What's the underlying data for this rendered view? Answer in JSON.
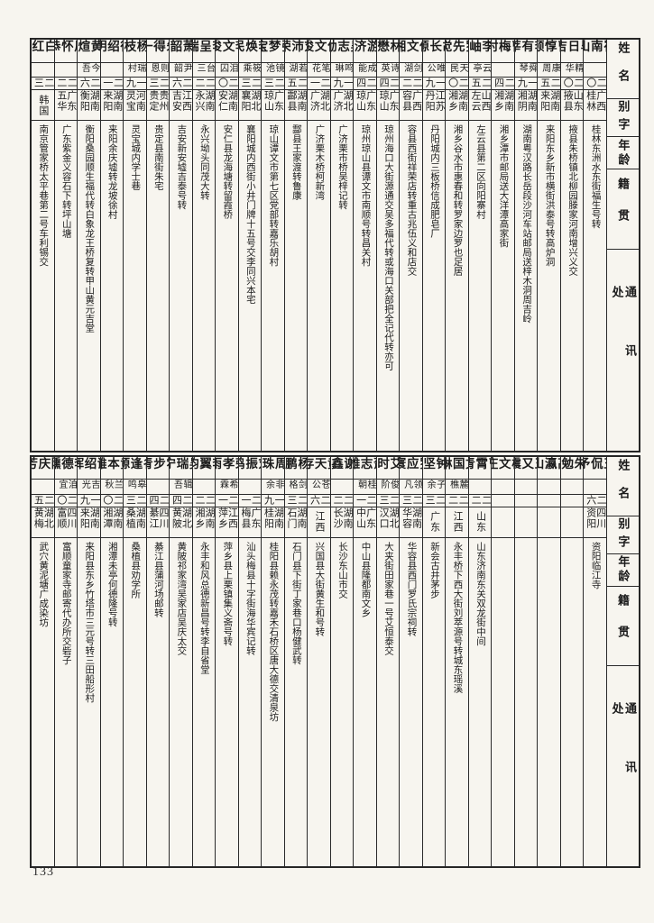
{
  "page_number": "133",
  "headers": {
    "name": "姓名",
    "courtesy_name": "别字",
    "age": "年龄",
    "native_place": "籍贯",
    "address": "通讯处"
  },
  "tables": {
    "top": {
      "entries": [
        {
          "name": "崔南山",
          "courtesy_name": "",
          "age": "二〇",
          "native_place": "广西桂林",
          "address": "桂林东洲水东街福生号转"
        },
        {
          "name": "毕日吉",
          "courtesy_name": "精华",
          "age": "二〇",
          "native_place": "山东掖县",
          "address": "掖县朱桥镇北柳园滕家河南增兴义交"
        },
        {
          "name": "曹惇颐",
          "courtesy_name": "康周",
          "age": "二五",
          "native_place": "湖南来阳",
          "address": "来阳东乡新市横街洪泰号转高炉洞"
        },
        {
          "name": "李有莘",
          "courtesy_name": "舜琴",
          "age": "一九",
          "native_place": "湖南湘阴",
          "address": "湖南粤汉路长岳段沙河车站邮局送梓木洞周吉岭"
        },
        {
          "name": "曹梅村",
          "courtesy_name": "",
          "age": "二四",
          "native_place": "湖南湘乡",
          "address": "湘乡潭市邮局送大洋潭高家街"
        },
        {
          "name": "李岫",
          "courtesy_name": "云亭",
          "age": "二五",
          "native_place": "山西左云",
          "address": "左云县第二区向阳寨村"
        },
        {
          "name": "罗先觉",
          "courtesy_name": "天民",
          "age": "二〇",
          "native_place": "湖南湘乡",
          "address": "湘乡谷水市惠春和转罗家边罗也足居"
        },
        {
          "name": "胡长源",
          "courtesy_name": "唯公",
          "age": "一九",
          "native_place": "江苏丹阳",
          "address": "丹阳城内三板桥信成肥皂厂"
        },
        {
          "name": "伍文湘",
          "courtesy_name": "剑湖",
          "age": "二二",
          "native_place": "广西容县",
          "address": "容县西街祥荣店转重古兆伍义和店交"
        },
        {
          "name": "林懋",
          "courtesy_name": "诗英",
          "age": "二四",
          "native_place": "广东琼山",
          "address": "琼州海口大街源通交吴多福代转或海口关部把全记代转亦可"
        },
        {
          "name": "游济",
          "courtesy_name": "成能",
          "age": "二四",
          "native_place": "广东琼山",
          "address": "琼州琼山县谭文市南顺号转昌关村"
        },
        {
          "name": "吴志勋",
          "courtesy_name": "鸣琳",
          "age": "一九",
          "native_place": "湖北广济",
          "address": "广济栗市桥吴梓记转"
        },
        {
          "name": "何文俊",
          "courtesy_name": "笔花",
          "age": "二一",
          "native_place": "湖北广济",
          "address": "广济栗木桥柯新湾"
        },
        {
          "name": "刘沛荣",
          "courtesy_name": "若湖",
          "age": "二五",
          "native_place": "湖南酃县",
          "address": "酃县王家渡转鲁康"
        },
        {
          "name": "张梦宝",
          "courtesy_name": "镜池",
          "age": "二三",
          "native_place": "广东琼山",
          "address": "琼山谭文市第七区党部转嘉乐胡村"
        },
        {
          "name": "李焕民",
          "courtesy_name": "筱乘",
          "age": "二三",
          "native_place": "湖北襄阳",
          "address": "襄阳城内西街小井门牌十五号交李同兴本宅"
        },
        {
          "name": "李文俊",
          "courtesy_name": "泪囚",
          "age": "二〇",
          "native_place": "湖南安仁",
          "address": "安仁县龙海塘转留霞桥"
        },
        {
          "name": "李呈瑞",
          "courtesy_name": "台三",
          "age": "二二",
          "native_place": "湖南永兴",
          "address": "永兴坳头同茂大转"
        },
        {
          "name": "萧韶",
          "courtesy_name": "尹韶",
          "age": "二六",
          "native_place": "江西吉安",
          "address": "吉安新安墟吉泰号转"
        },
        {
          "name": "朱得一",
          "courtesy_name": "则恩",
          "age": "二三",
          "native_place": "贵州贵定",
          "address": "贵定县南街朱宅"
        },
        {
          "name": "杨枝",
          "courtesy_name": "瑞村",
          "age": "一九",
          "native_place": "河南灵宝",
          "address": "灵宝城内学士巷"
        },
        {
          "name": "徐绍明",
          "courtesy_name": "",
          "age": "二一",
          "native_place": "湖南来阳",
          "address": "来阳余庆墟转龙坡徐村"
        },
        {
          "name": "黄煊",
          "courtesy_name": "今吾",
          "age": "二六",
          "native_place": "湖南衡阳",
          "address": "衡阳桑园顺生福代转白象龙王桥复转甲山黄元吉堂"
        },
        {
          "name": "周怀恭",
          "courtesy_name": "",
          "age": "二二",
          "native_place": "广东五华",
          "address": "广东紫金义容石下转坪山塘"
        },
        {
          "name": "白红",
          "courtesy_name": "",
          "age": "二三",
          "native_place": "韩国",
          "address": "南京管家桥太平巷第二号车利锡交"
        }
      ]
    },
    "bottom": {
      "entries": [
        {
          "name": "王侃予",
          "courtesy_name": "",
          "age": "二六",
          "native_place": "四川资阳",
          "address": "资阳临江寺"
        },
        {
          "name": "朱勉",
          "courtesy_name": "",
          "age": "",
          "native_place": "",
          "address": ""
        },
        {
          "name": "高瀛山",
          "courtesy_name": "",
          "age": "",
          "native_place": "",
          "address": ""
        },
        {
          "name": "王又震",
          "courtesy_name": "",
          "age": "",
          "native_place": "",
          "address": ""
        },
        {
          "name": "杨文庄",
          "courtesy_name": "",
          "age": "",
          "native_place": "",
          "address": ""
        },
        {
          "name": "曹霄青",
          "courtesy_name": "",
          "age": "二二",
          "native_place": "山东",
          "address": "山东济南东关双龙街中间"
        },
        {
          "name": "文国琳",
          "courtesy_name": "麓樵",
          "age": "二二",
          "native_place": "江西",
          "address": "永丰桥下西大街刘萃源号转城东瑶溪"
        },
        {
          "name": "钟坚",
          "courtesy_name": "子余",
          "age": "二三",
          "native_place": "广东",
          "address": "新会古井茅步"
        },
        {
          "name": "罗应寰",
          "courtesy_name": "领凡",
          "age": "二三",
          "native_place": "湖南华容",
          "address": "华容县西门罗氏宗祠转"
        },
        {
          "name": "艾时",
          "courtesy_name": "俊阶",
          "age": "二三",
          "native_place": "湖北汉口",
          "address": "大夹街田家巷一号艾恒泰交"
        },
        {
          "name": "萧志雄",
          "courtesy_name": "桂朝",
          "age": "二一",
          "native_place": "广东中山",
          "address": "中山县隆都南文乡"
        },
        {
          "name": "谢鑫",
          "courtesy_name": "",
          "age": "二二",
          "native_place": "湖南长沙",
          "address": "长沙东山市交"
        },
        {
          "name": "黄天存",
          "courtesy_name": "苍公",
          "age": "二六",
          "native_place": "江西",
          "address": "兴国县大街黄生和号转"
        },
        {
          "name": "杨鹏",
          "courtesy_name": "剑格",
          "age": "二三",
          "native_place": "湖南石门",
          "address": "石门县下街丁家巷口杨健武转"
        },
        {
          "name": "周珠",
          "courtesy_name": "非余",
          "age": "一九",
          "native_place": "湖南桂阳",
          "address": "桂阳县赖永茂转嘉禾石桥区唐大德交清泉坊"
        },
        {
          "name": "刘振鸣",
          "courtesy_name": "",
          "age": "二一",
          "native_place": "广东梅县",
          "address": "汕头梅县十字街海华宾记转"
        },
        {
          "name": "荣孝雨",
          "courtesy_name": "希霖",
          "age": "二一",
          "native_place": "江西萍乡",
          "address": "萍乡县上栗镇集义斋号转"
        },
        {
          "name": "李翼钧",
          "courtesy_name": "",
          "age": "二二",
          "native_place": "湖南湘乡",
          "address": "永丰和风总德新昌号转李自省堂"
        },
        {
          "name": "吴瑞宁",
          "courtesy_name": "辑吾",
          "age": "二四",
          "native_place": "湖北黄陂",
          "address": "黄陂祁家湾吴家店吴庆太交"
        },
        {
          "name": "霍步青",
          "courtesy_name": "",
          "age": "二四",
          "native_place": "四川綦江",
          "address": "綦江县蒲河场邮转"
        },
        {
          "name": "谷逢源",
          "courtesy_name": "皋鸣",
          "age": "二三",
          "native_place": "湖南桑植",
          "address": "桑植县劝学所"
        },
        {
          "name": "黄本雄",
          "courtesy_name": "兰秋",
          "age": "二〇",
          "native_place": "湖南湘潭",
          "address": "湘潭未亭何德隆号转"
        },
        {
          "name": "谢绍晖",
          "courtesy_name": "吉光",
          "age": "一九",
          "native_place": "湖南来阳",
          "address": "来阳县东乡竹塔市三元号转三田船形村"
        },
        {
          "name": "李德壎",
          "courtesy_name": "洎宜",
          "age": "二〇",
          "native_place": "四川富顺",
          "address": "富顺童家寺邮寄代办所交砦子"
        },
        {
          "name": "陈庆芳",
          "courtesy_name": "",
          "age": "二五",
          "native_place": "湖北黄梅",
          "address": "武穴黄泥塘广成染坊"
        }
      ]
    }
  }
}
